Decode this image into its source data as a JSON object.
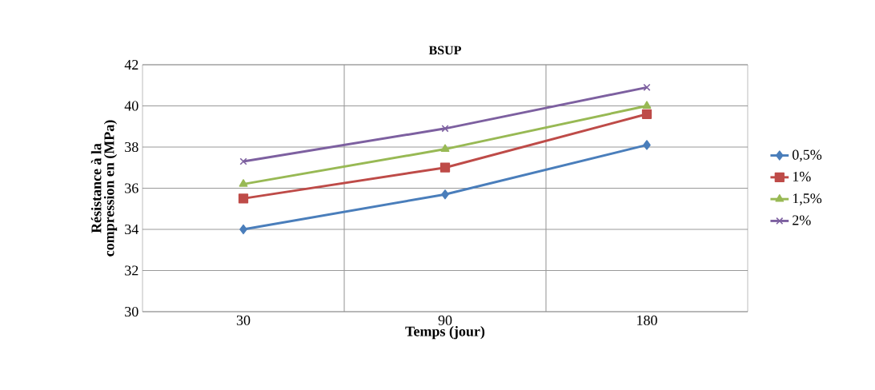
{
  "chart_data": {
    "type": "line",
    "title": "BSUP",
    "xlabel": "Temps (jour)",
    "ylabel": "Résistance à la compression en (MPa)",
    "categories": [
      "30",
      "90",
      "180"
    ],
    "series": [
      {
        "name": "0,5%",
        "color": "#4a7ebb",
        "marker": "diamond",
        "values": [
          34.0,
          35.7,
          38.1
        ]
      },
      {
        "name": "1%",
        "color": "#be4b48",
        "marker": "square",
        "values": [
          35.5,
          37.0,
          39.6
        ]
      },
      {
        "name": "1,5%",
        "color": "#98b954",
        "marker": "triangle",
        "values": [
          36.2,
          37.9,
          40.0
        ]
      },
      {
        "name": "2%",
        "color": "#7d60a0",
        "marker": "cross",
        "values": [
          37.3,
          38.9,
          40.9
        ]
      }
    ],
    "ylim": [
      30,
      42
    ],
    "yticks": [
      30,
      32,
      34,
      36,
      38,
      40,
      42
    ],
    "grid": true,
    "legend": "right"
  }
}
